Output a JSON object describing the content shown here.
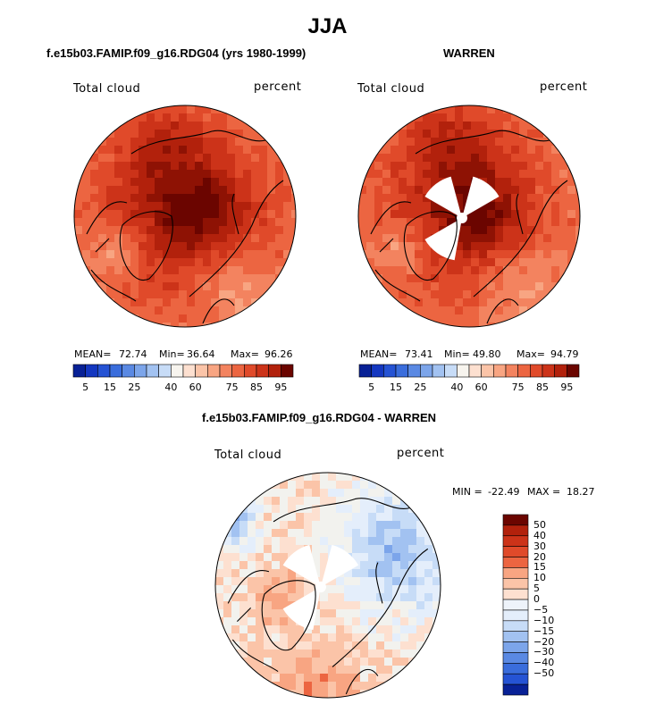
{
  "main_title": "JJA",
  "colors": {
    "warm": [
      "#fde0d0",
      "#fbc4a8",
      "#f8a582",
      "#f3835f",
      "#ec6541",
      "#e04a2a",
      "#cc3319",
      "#b2210c",
      "#8e1204",
      "#6b0500"
    ],
    "cool": [
      "#082196",
      "#1437c0",
      "#2553d4",
      "#3a6ddc",
      "#5a89e3",
      "#7ca5ea",
      "#a2c2f1",
      "#c7dcf7",
      "#e4eefb"
    ],
    "neutral": "#f2f2ee",
    "land": "#000000"
  },
  "chart_data": [
    {
      "type": "heatmap",
      "projection": "north-polar-stereographic",
      "title": "f.e15b03.FAMIP.f09_g16.RDG04 (yrs 1980-1999)",
      "variable": "Total cloud",
      "units": "percent",
      "stats": {
        "mean_label": "MEAN=",
        "mean": "72.74",
        "min_label": "Min=",
        "min": "36.64",
        "max_label": "Max=",
        "max": "96.26"
      },
      "colorbar": {
        "levels": [
          0,
          5,
          10,
          15,
          20,
          25,
          30,
          35,
          40,
          50,
          60,
          65,
          70,
          75,
          80,
          85,
          90,
          95,
          100
        ],
        "tick_labels": [
          "5",
          "15",
          "25",
          "40",
          "60",
          "75",
          "85",
          "95"
        ]
      },
      "missing_sectors": false
    },
    {
      "type": "heatmap",
      "projection": "north-polar-stereographic",
      "title": "WARREN",
      "variable": "Total cloud",
      "units": "percent",
      "stats": {
        "mean_label": "MEAN=",
        "mean": "73.41",
        "min_label": "Min=",
        "min": "49.80",
        "max_label": "Max=",
        "max": "94.79"
      },
      "colorbar": {
        "levels": [
          0,
          5,
          10,
          15,
          20,
          25,
          30,
          35,
          40,
          50,
          60,
          65,
          70,
          75,
          80,
          85,
          90,
          95,
          100
        ],
        "tick_labels": [
          "5",
          "15",
          "25",
          "40",
          "60",
          "75",
          "85",
          "95"
        ]
      },
      "missing_sectors": true
    },
    {
      "type": "heatmap",
      "projection": "north-polar-stereographic",
      "title": "f.e15b03.FAMIP.f09_g16.RDG04 - WARREN",
      "variable": "Total cloud",
      "units": "percent",
      "stats": {
        "min_label": "MIN =",
        "min": "-22.49",
        "max_label": "MAX =",
        "max": "18.27"
      },
      "colorbar": {
        "orientation": "vertical",
        "levels": [
          -50,
          -40,
          -30,
          -20,
          -15,
          -10,
          -5,
          0,
          5,
          10,
          15,
          20,
          30,
          40,
          50
        ],
        "tick_labels": [
          "50",
          "40",
          "30",
          "20",
          "15",
          "10",
          "5",
          "0",
          "−5",
          "−10",
          "−15",
          "−20",
          "−30",
          "−40",
          "−50"
        ]
      },
      "missing_sectors": true
    }
  ]
}
